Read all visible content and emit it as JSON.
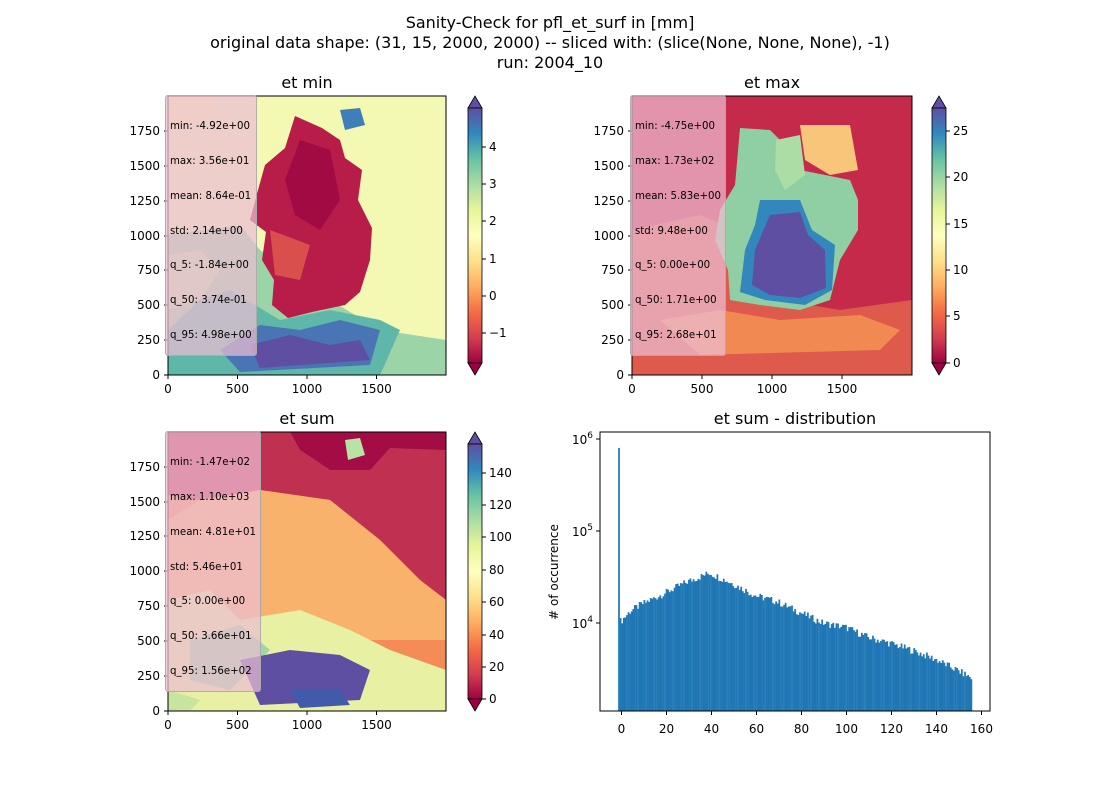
{
  "figure": {
    "title_lines": [
      "Sanity-Check for pfl_et_surf in [mm]",
      "original data shape: (31, 15, 2000, 2000) -- sliced with: (slice(None, None, None), -1)",
      "run: 2004_10"
    ]
  },
  "colors": {
    "cmap_spectral": [
      "#9e0142",
      "#d53e4f",
      "#f46d43",
      "#fdae61",
      "#fee08b",
      "#ffffbf",
      "#e6f598",
      "#abdda4",
      "#66c2a5",
      "#3288bd",
      "#5e4fa2"
    ],
    "hist_bar": "#1f77b4"
  },
  "chart_data": [
    {
      "type": "heatmap",
      "title": "et min",
      "xlim": [
        0,
        2000
      ],
      "ylim": [
        0,
        2000
      ],
      "x_ticks": [
        "0",
        "500",
        "1000",
        "1500"
      ],
      "y_ticks": [
        "0",
        "250",
        "500",
        "750",
        "1000",
        "1250",
        "1500",
        "1750"
      ],
      "colorbar": {
        "range": [
          -1.9,
          5.0
        ],
        "ticks": [
          "−1",
          "0",
          "1",
          "2",
          "3",
          "4"
        ],
        "extend": "both"
      },
      "stats": [
        "min: -4.92e+00",
        "max: 3.56e+01",
        "mean: 8.64e-01",
        "std: 2.14e+00",
        "q_5: -1.84e+00",
        "q_50: 3.74e-01",
        "q_95: 4.98e+00"
      ]
    },
    {
      "type": "heatmap",
      "title": "et max",
      "xlim": [
        0,
        2000
      ],
      "ylim": [
        0,
        2000
      ],
      "x_ticks": [
        "0",
        "500",
        "1000",
        "1500"
      ],
      "y_ticks": [
        "0",
        "250",
        "500",
        "750",
        "1000",
        "1250",
        "1500",
        "1750"
      ],
      "colorbar": {
        "range": [
          0,
          27.5
        ],
        "ticks": [
          "0",
          "5",
          "10",
          "15",
          "20",
          "25"
        ],
        "extend": "both"
      },
      "stats": [
        "min: -4.75e+00",
        "max: 1.73e+02",
        "mean: 5.83e+00",
        "std: 9.48e+00",
        "q_5: 0.00e+00",
        "q_50: 1.71e+00",
        "q_95: 2.68e+01"
      ]
    },
    {
      "type": "heatmap",
      "title": "et sum",
      "xlim": [
        0,
        2000
      ],
      "ylim": [
        0,
        2000
      ],
      "x_ticks": [
        "0",
        "500",
        "1000",
        "1500"
      ],
      "y_ticks": [
        "0",
        "250",
        "500",
        "750",
        "1000",
        "1250",
        "1500",
        "1750"
      ],
      "colorbar": {
        "range": [
          -5,
          157
        ],
        "ticks": [
          "0",
          "20",
          "40",
          "60",
          "80",
          "100",
          "120",
          "140"
        ],
        "extend": "both"
      },
      "stats": [
        "min: -1.47e+02",
        "max: 1.10e+03",
        "mean: 4.81e+01",
        "std: 5.46e+01",
        "q_5: 0.00e+00",
        "q_50: 3.66e+01",
        "q_95: 1.56e+02"
      ]
    },
    {
      "type": "bar",
      "title": "et sum - distribution",
      "ylabel": "# of occurrence",
      "yscale": "log",
      "xlim": [
        -8,
        164
      ],
      "x_ticks": [
        "0",
        "20",
        "40",
        "60",
        "80",
        "100",
        "120",
        "140",
        "160"
      ],
      "y_ticks": [
        "10^4",
        "10^5",
        "10^6"
      ],
      "bin_range": [
        0,
        156
      ],
      "sample_counts": [
        {
          "x": 0,
          "y": 800000
        },
        {
          "x": 1,
          "y": 10500
        },
        {
          "x": 5,
          "y": 13500
        },
        {
          "x": 10,
          "y": 16000
        },
        {
          "x": 20,
          "y": 21000
        },
        {
          "x": 30,
          "y": 28000
        },
        {
          "x": 40,
          "y": 35000
        },
        {
          "x": 50,
          "y": 27000
        },
        {
          "x": 60,
          "y": 20000
        },
        {
          "x": 70,
          "y": 17000
        },
        {
          "x": 80,
          "y": 13000
        },
        {
          "x": 90,
          "y": 10000
        },
        {
          "x": 100,
          "y": 9000
        },
        {
          "x": 110,
          "y": 7000
        },
        {
          "x": 120,
          "y": 6000
        },
        {
          "x": 130,
          "y": 5000
        },
        {
          "x": 140,
          "y": 4000
        },
        {
          "x": 150,
          "y": 3000
        },
        {
          "x": 156,
          "y": 2500
        }
      ]
    }
  ]
}
